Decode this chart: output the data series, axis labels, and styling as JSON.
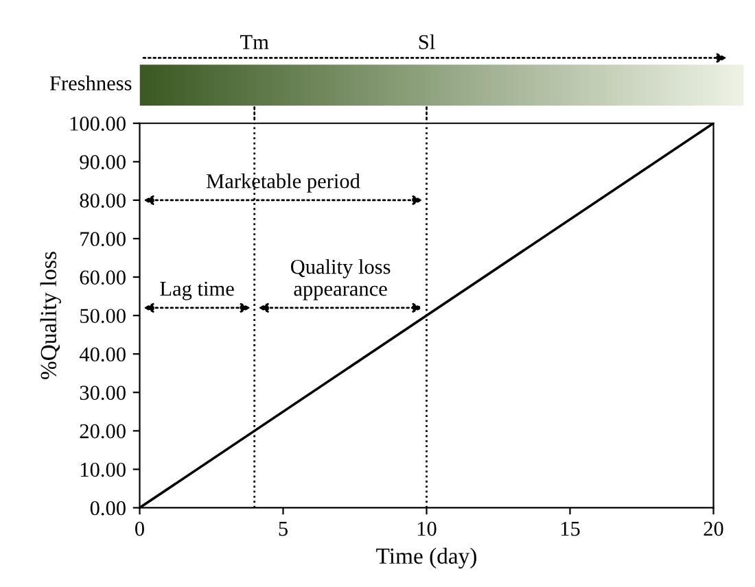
{
  "chart_data": {
    "type": "line",
    "xlabel": "Time (day)",
    "ylabel": "%Quality loss",
    "series": [
      {
        "color": "#000000",
        "x": [
          0,
          20
        ],
        "values": [
          0,
          100
        ]
      }
    ],
    "xlim": [
      0,
      20
    ],
    "xticks": [
      0,
      5,
      10,
      15,
      20
    ],
    "ylim": [
      0,
      100
    ],
    "yticks": [
      {
        "value": 0,
        "label": "0.00"
      },
      {
        "value": 10,
        "label": "10.00"
      },
      {
        "value": 20,
        "label": "20.00"
      },
      {
        "value": 30,
        "label": "30.00"
      },
      {
        "value": 40,
        "label": "40.00"
      },
      {
        "value": 50,
        "label": "50.00"
      },
      {
        "value": 60,
        "label": "60.00"
      },
      {
        "value": 70,
        "label": "70.00"
      },
      {
        "value": 80,
        "label": "80.00"
      },
      {
        "value": 90,
        "label": "90.00"
      },
      {
        "value": 100,
        "label": "100.00"
      }
    ],
    "ref_lines": [
      {
        "axis": "x",
        "value": 4,
        "label": "Tm",
        "line_style": "dotted"
      },
      {
        "axis": "x",
        "value": 10,
        "label": "Sl",
        "line_style": "dotted"
      }
    ],
    "annotations": [
      "Marketable period",
      "Lag time",
      "Quality loss\nappearance",
      "Freshness"
    ],
    "grid": false,
    "legend": false,
    "marker": "none",
    "line_style": "solid"
  }
}
